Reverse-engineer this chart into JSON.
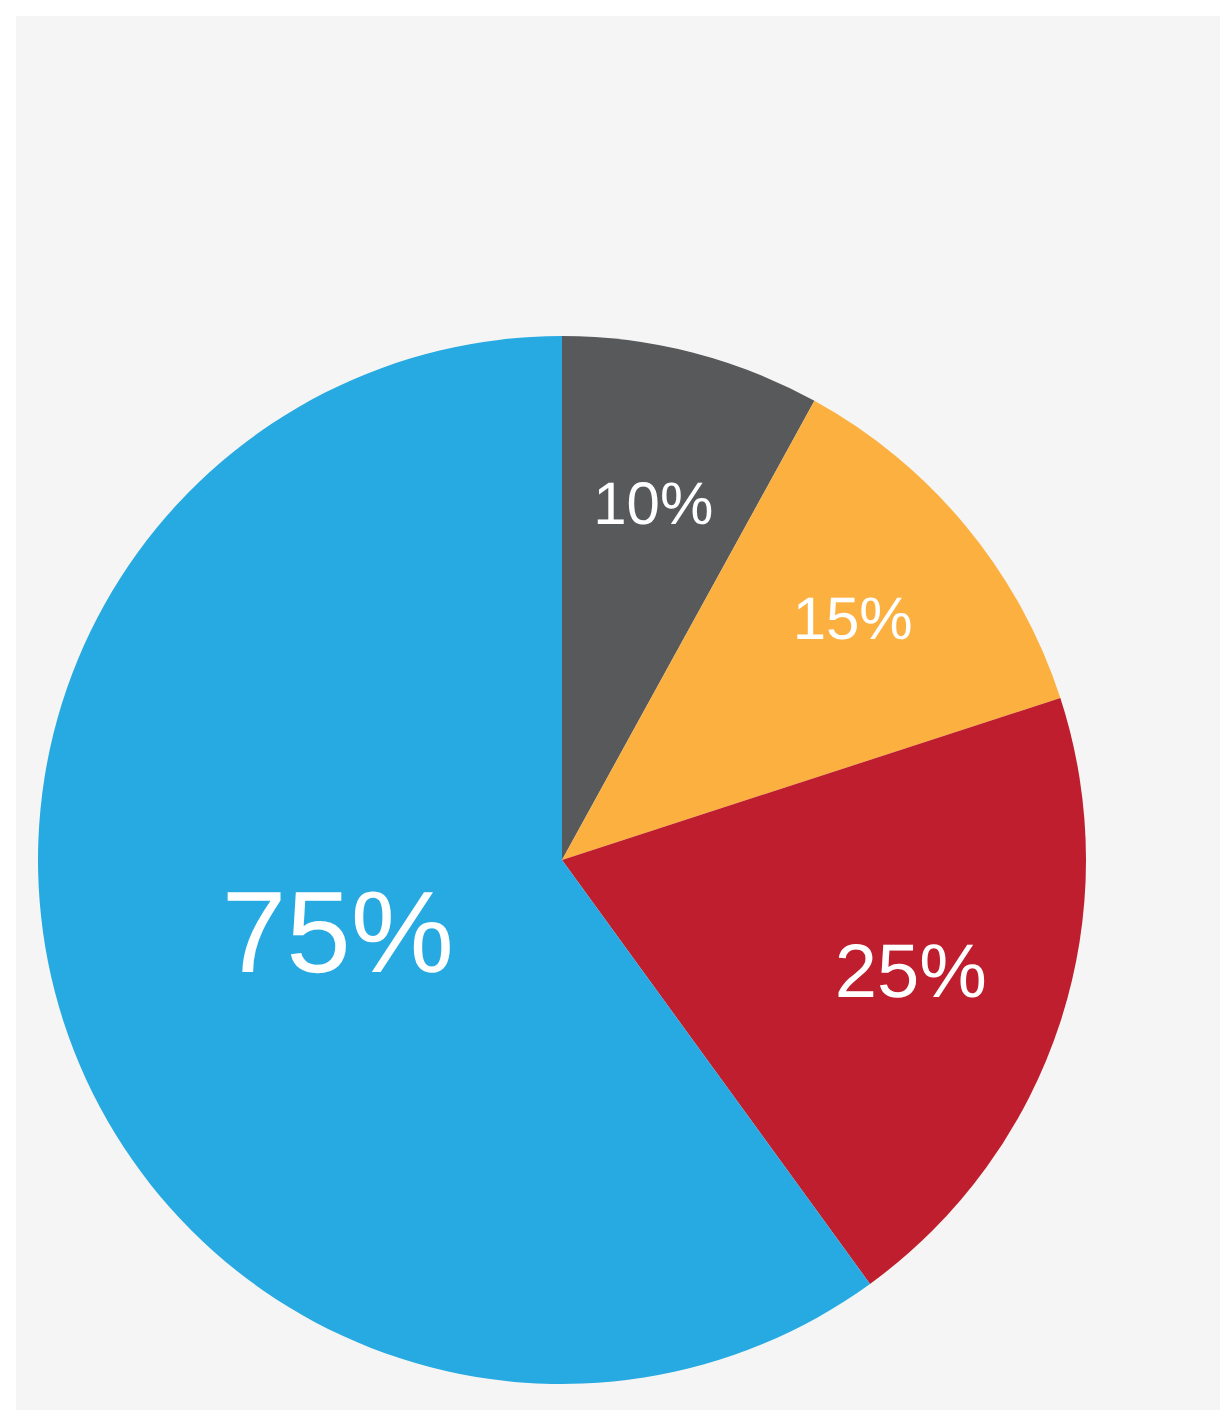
{
  "chart_data": {
    "type": "pie",
    "categories": [
      null,
      null,
      null,
      null
    ],
    "values": [
      10,
      15,
      25,
      75
    ],
    "value_labels": [
      "10%",
      "15%",
      "25%",
      "75%"
    ],
    "colors": [
      "#58595b",
      "#fbb040",
      "#be1e2d",
      "#27aae1"
    ],
    "legend": false
  }
}
